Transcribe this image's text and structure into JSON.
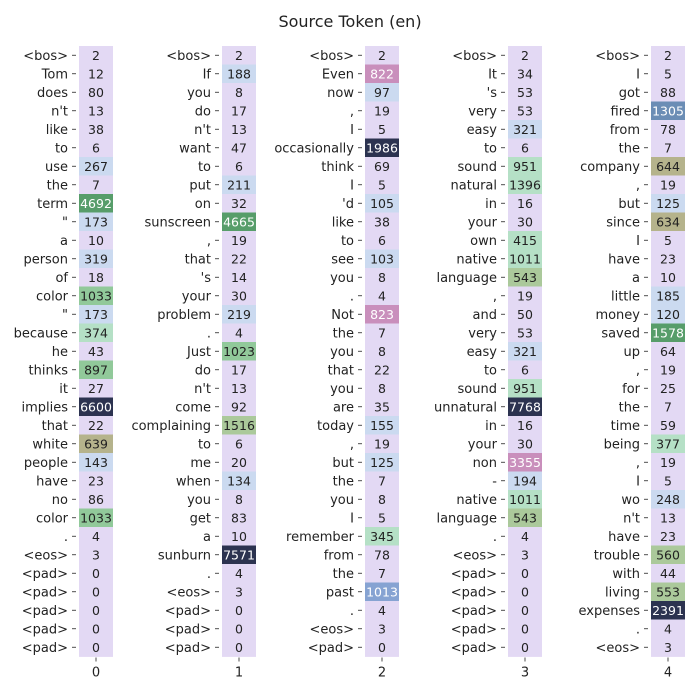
{
  "chart_data": {
    "type": "heatmap",
    "title": "Source Token (en)",
    "x_ticks": [
      "0",
      "1",
      "2",
      "3",
      "4"
    ],
    "columns": [
      {
        "tokens": [
          "<bos>",
          "Tom",
          "does",
          "n't",
          "like",
          "to",
          "use",
          "the",
          "term",
          "\"",
          "a",
          "person",
          "of",
          "color",
          "\"",
          "because",
          "he",
          "thinks",
          "it",
          "implies",
          "that",
          "white",
          "people",
          "have",
          "no",
          "color",
          ".",
          "<eos>",
          "<pad>",
          "<pad>",
          "<pad>",
          "<pad>",
          "<pad>"
        ],
        "values": [
          2,
          12,
          80,
          13,
          38,
          6,
          267,
          7,
          4692,
          173,
          10,
          319,
          18,
          1033,
          173,
          374,
          43,
          897,
          27,
          6600,
          22,
          639,
          143,
          23,
          86,
          1033,
          4,
          3,
          0,
          0,
          0,
          0,
          0
        ]
      },
      {
        "tokens": [
          "<bos>",
          "If",
          "you",
          "do",
          "n't",
          "want",
          "to",
          "put",
          "on",
          "sunscreen",
          ",",
          "that",
          "'s",
          "your",
          "problem",
          ".",
          "Just",
          "do",
          "n't",
          "come",
          "complaining",
          "to",
          "me",
          "when",
          "you",
          "get",
          "a",
          "sunburn",
          ".",
          "<eos>",
          "<pad>",
          "<pad>",
          "<pad>"
        ],
        "values": [
          2,
          188,
          8,
          17,
          13,
          47,
          6,
          211,
          32,
          4665,
          19,
          22,
          14,
          30,
          219,
          4,
          1023,
          17,
          13,
          92,
          1516,
          6,
          20,
          134,
          8,
          83,
          10,
          7571,
          4,
          3,
          0,
          0,
          0
        ]
      },
      {
        "tokens": [
          "<bos>",
          "Even",
          "now",
          ",",
          "I",
          "occasionally",
          "think",
          "I",
          "'d",
          "like",
          "to",
          "see",
          "you",
          ".",
          "Not",
          "the",
          "you",
          "that",
          "you",
          "are",
          "today",
          ",",
          "but",
          "the",
          "you",
          "I",
          "remember",
          "from",
          "the",
          "past",
          ".",
          "<eos>",
          "<pad>"
        ],
        "values": [
          2,
          822,
          97,
          19,
          5,
          1986,
          69,
          5,
          105,
          38,
          6,
          103,
          8,
          4,
          823,
          7,
          8,
          22,
          8,
          35,
          155,
          19,
          125,
          7,
          8,
          5,
          345,
          78,
          7,
          1013,
          4,
          3,
          0
        ]
      },
      {
        "tokens": [
          "<bos>",
          "It",
          "'s",
          "very",
          "easy",
          "to",
          "sound",
          "natural",
          "in",
          "your",
          "own",
          "native",
          "language",
          ",",
          "and",
          "very",
          "easy",
          "to",
          "sound",
          "unnatural",
          "in",
          "your",
          "non",
          "-",
          "native",
          "language",
          ".",
          "<eos>",
          "<pad>",
          "<pad>",
          "<pad>",
          "<pad>",
          "<pad>"
        ],
        "values": [
          2,
          34,
          53,
          53,
          321,
          6,
          951,
          1396,
          16,
          30,
          415,
          1011,
          543,
          19,
          50,
          53,
          321,
          6,
          951,
          7768,
          16,
          30,
          3355,
          194,
          1011,
          543,
          4,
          3,
          0,
          0,
          0,
          0,
          0
        ]
      },
      {
        "tokens": [
          "<bos>",
          "I",
          "got",
          "fired",
          "from",
          "the",
          "company",
          ",",
          "but",
          "since",
          "I",
          "have",
          "a",
          "little",
          "money",
          "saved",
          "up",
          ",",
          "for",
          "the",
          "time",
          "being",
          ",",
          "I",
          "wo",
          "n't",
          "have",
          "trouble",
          "with",
          "living",
          "expenses",
          ".",
          "<eos>"
        ],
        "values": [
          2,
          5,
          88,
          1305,
          78,
          7,
          644,
          19,
          125,
          634,
          5,
          23,
          10,
          185,
          120,
          1578,
          64,
          19,
          25,
          7,
          59,
          377,
          19,
          5,
          248,
          13,
          23,
          560,
          44,
          553,
          2391,
          4,
          3
        ]
      }
    ]
  },
  "colors": {
    "background_cell": "#e3d9f4",
    "dark_cell": "#2c3350",
    "green_dark": "#579d6a",
    "green_mid": "#91c99a",
    "green_light": "#b5e0c6",
    "blue_light": "#cbdaf0",
    "blue_mid": "#86a3d2",
    "steel": "#6b8db5",
    "pink": "#c98fbc",
    "olive": "#b5b38c",
    "sage": "#abc99b"
  }
}
